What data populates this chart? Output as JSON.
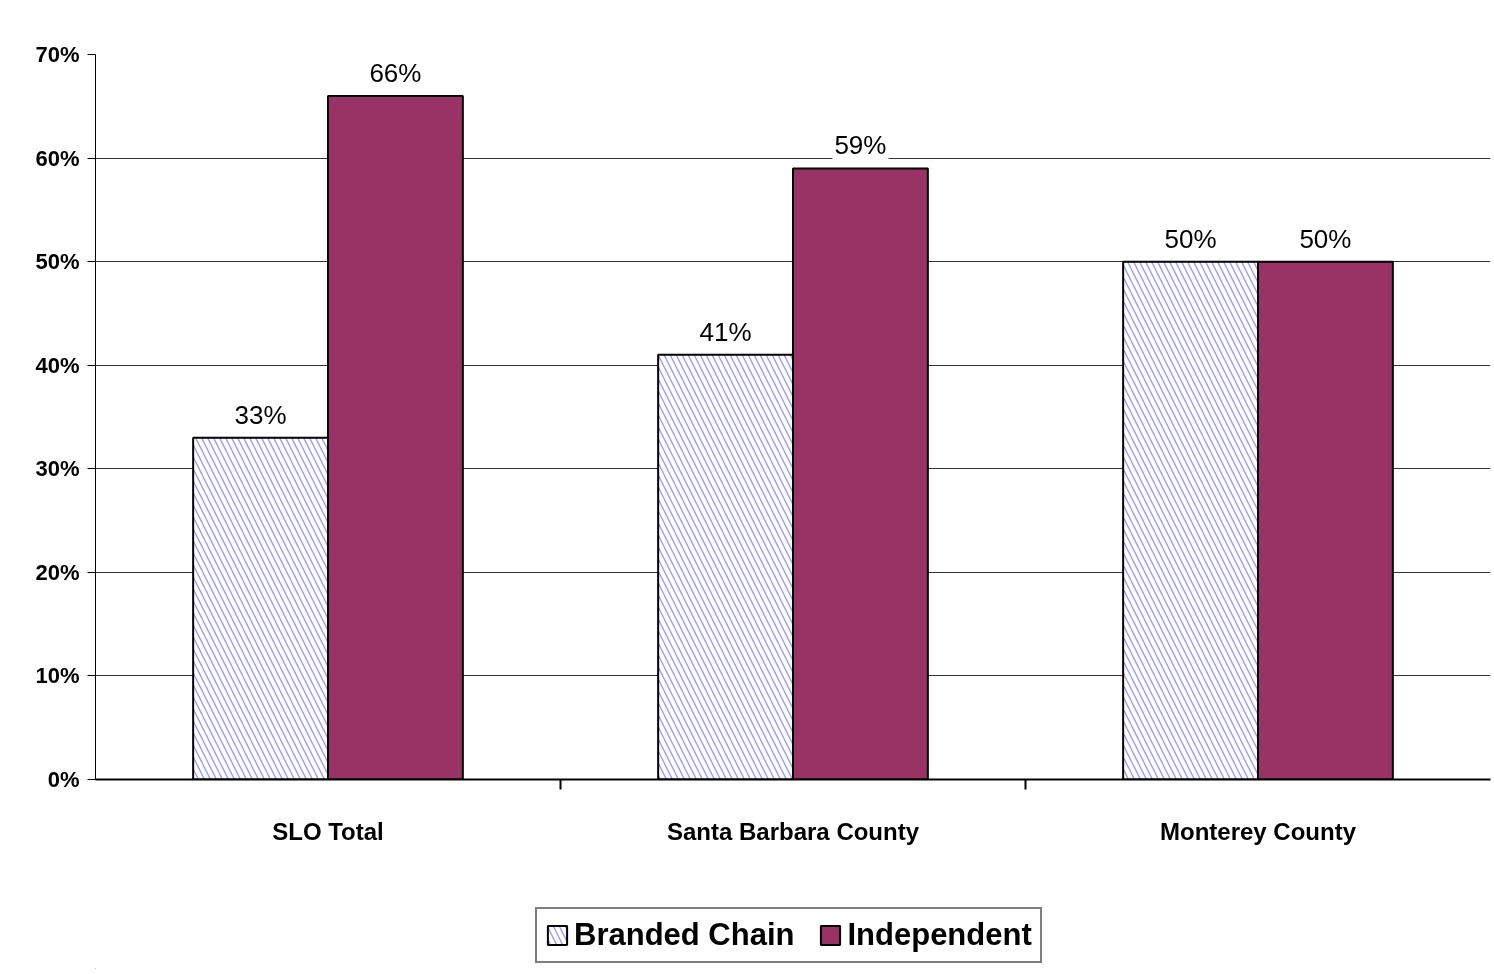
{
  "chart_data": {
    "type": "bar",
    "categories": [
      "SLO Total",
      "Santa Barbara County",
      "Monterey County"
    ],
    "series": [
      {
        "name": "Branded Chain",
        "color": "#9999ff",
        "values": [
          33,
          41,
          50
        ],
        "value_labels": [
          "33%",
          "41%",
          "50%"
        ]
      },
      {
        "name": "Independent",
        "color": "#993366",
        "values": [
          66,
          59,
          50
        ],
        "value_labels": [
          "66%",
          "59%",
          "50%"
        ]
      }
    ],
    "ylim": [
      0,
      70
    ],
    "yticks": [
      {
        "value": 0,
        "label": "0%"
      },
      {
        "value": 10,
        "label": "10%"
      },
      {
        "value": 20,
        "label": "20%"
      },
      {
        "value": 30,
        "label": "30%"
      },
      {
        "value": 40,
        "label": "40%"
      },
      {
        "value": 50,
        "label": "50%"
      },
      {
        "value": 60,
        "label": "60%"
      },
      {
        "value": 70,
        "label": "70%"
      }
    ],
    "grid": "y",
    "legend": "bottom"
  }
}
